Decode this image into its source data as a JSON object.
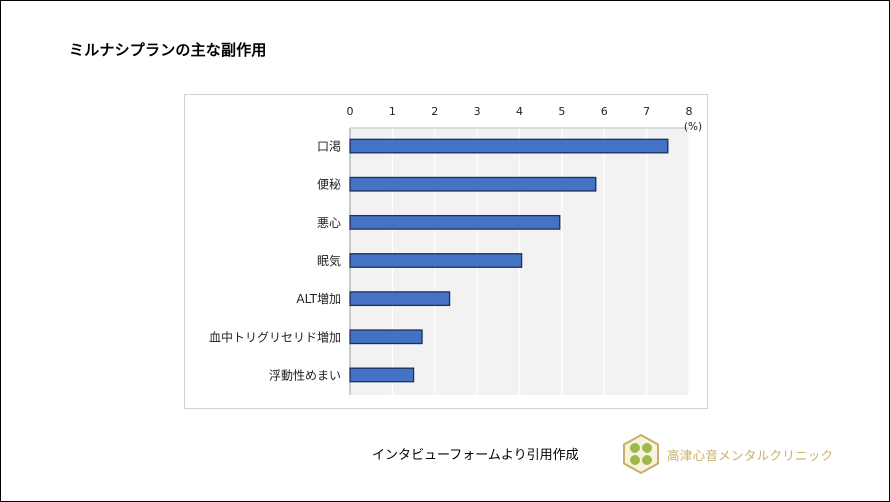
{
  "title": "ミルナシプランの主な副作用",
  "source_text": "インタビューフォームより引用作成",
  "clinic_name": "高津心音メンタルクリニック",
  "logo_text": "高津心音",
  "colors": {
    "bar_fill": "#4472c4",
    "bar_stroke": "#1f2f5e",
    "plot_bg": "#f2f2f2",
    "grid": "#ffffff",
    "clinic": "#c8b06a"
  },
  "chart_data": {
    "type": "bar",
    "orientation": "horizontal",
    "categories": [
      "口渇",
      "便秘",
      "悪心",
      "眠気",
      "ALT増加",
      "血中トリグリセリド増加",
      "浮動性めまい"
    ],
    "values": [
      7.5,
      5.8,
      4.95,
      4.05,
      2.35,
      1.7,
      1.5
    ],
    "xlim": [
      0,
      8
    ],
    "xticks": [
      "0",
      "1",
      "2",
      "3",
      "4",
      "5",
      "6",
      "7",
      "8"
    ],
    "unit_label": "(%)",
    "axis_position": "top",
    "grid": true
  }
}
